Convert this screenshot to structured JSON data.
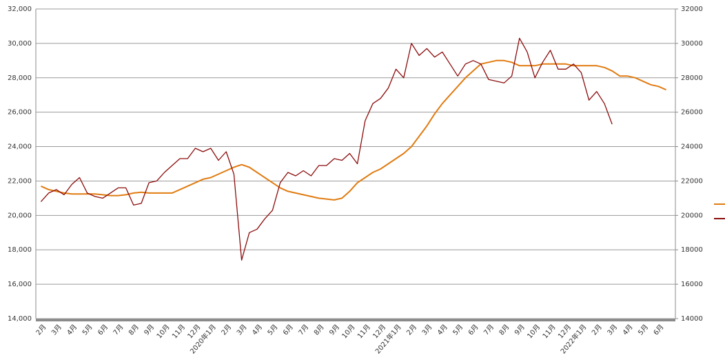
{
  "chart_data": {
    "type": "line",
    "categories": [
      "2月",
      null,
      "3月",
      null,
      "4月",
      null,
      "5月",
      null,
      "6月",
      null,
      "7月",
      null,
      "8月",
      null,
      "9月",
      null,
      "10月",
      null,
      "11月",
      null,
      "12月",
      null,
      "2020年1月",
      null,
      "2月",
      null,
      "3月",
      null,
      "4月",
      null,
      "5月",
      null,
      "6月",
      null,
      "7月",
      null,
      "8月",
      null,
      "9月",
      null,
      "10月",
      null,
      "11月",
      null,
      "12月",
      null,
      "2021年1月",
      null,
      "2月",
      null,
      "3月",
      null,
      "4月",
      null,
      "5月",
      null,
      "6月",
      null,
      "7月",
      null,
      "8月",
      null,
      "9月",
      null,
      "10月",
      null,
      "11月",
      null,
      "12月",
      null,
      "2022年1月",
      null,
      "2月",
      null,
      "3月",
      null,
      "4月",
      null,
      "5月",
      null,
      "6月",
      null
    ],
    "series": [
      {
        "color": "#e07b10",
        "values": [
          21700,
          21500,
          21400,
          21300,
          21250,
          21250,
          21250,
          21250,
          21200,
          21150,
          21150,
          21200,
          21300,
          21350,
          21300,
          21300,
          21300,
          21300,
          21500,
          21700,
          21900,
          22100,
          22200,
          22400,
          22600,
          22800,
          22950,
          22800,
          22500,
          22200,
          21900,
          21600,
          21400,
          21300,
          21200,
          21100,
          21000,
          20950,
          20900,
          21000,
          21400,
          21900,
          22200,
          22500,
          22700,
          23000,
          23300,
          23600,
          24000,
          24600,
          25200,
          25900,
          26500,
          27000,
          27500,
          28000,
          28400,
          28800,
          28900,
          29000,
          29000,
          28900,
          28700,
          28700,
          28700,
          28800,
          28800,
          28800,
          28800,
          28700,
          28700,
          28700,
          28700,
          28600,
          28400,
          28100,
          28100,
          28000,
          27800,
          27600,
          27500,
          27300
        ]
      },
      {
        "color": "#8b0a0a",
        "values": [
          20800,
          21300,
          21500,
          21200,
          21800,
          22200,
          21300,
          21100,
          21000,
          21300,
          21600,
          21600,
          20600,
          20700,
          21900,
          22000,
          22500,
          22900,
          23300,
          23300,
          23900,
          23700,
          23900,
          23200,
          23700,
          22400,
          17400,
          19000,
          19200,
          19800,
          20300,
          21900,
          22500,
          22300,
          22600,
          22300,
          22900,
          22900,
          23300,
          23200,
          23600,
          23000,
          25500,
          26500,
          26800,
          27400,
          28500,
          28000,
          30000,
          29300,
          29700,
          29200,
          29500,
          28800,
          28100,
          28800,
          29000,
          28800,
          27900,
          27800,
          27700,
          28100,
          30300,
          29500,
          28000,
          28900,
          29600,
          28500,
          28500,
          28800,
          28300,
          26700,
          27200,
          26500,
          25300,
          null,
          null,
          null,
          null,
          null,
          null,
          null
        ]
      }
    ],
    "ylim": [
      14000,
      32000
    ],
    "yticks": [
      {
        "value": 14000,
        "label": "14,000"
      },
      {
        "value": 16000,
        "label": "16,000"
      },
      {
        "value": 18000,
        "label": "18,000"
      },
      {
        "value": 20000,
        "label": "20,000"
      },
      {
        "value": 22000,
        "label": "22,000"
      },
      {
        "value": 24000,
        "label": "24,000"
      },
      {
        "value": 26000,
        "label": "26,000"
      },
      {
        "value": 28000,
        "label": "28,000"
      },
      {
        "value": 30000,
        "label": "30,000"
      },
      {
        "value": 32000,
        "label": "32,000"
      }
    ],
    "y2lim": [
      14000,
      32000
    ],
    "y2ticks": [
      14000,
      16000,
      18000,
      20000,
      22000,
      24000,
      26000,
      28000,
      30000,
      32000
    ],
    "grid": true
  }
}
